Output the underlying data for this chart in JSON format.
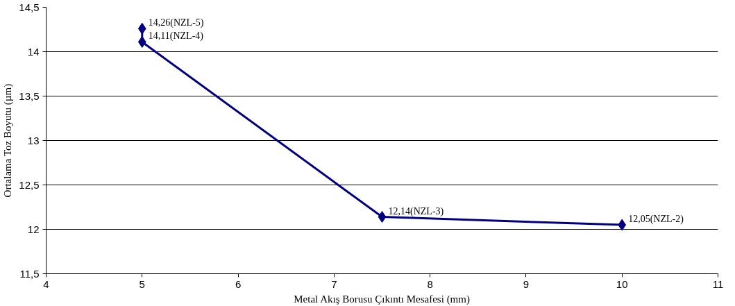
{
  "chart_data": {
    "type": "line",
    "xlabel": "Metal Akış Borusu Çıkıntı Mesafesi (mm)",
    "ylabel": "Ortalama Toz Boyutu (µm)",
    "x": [
      5,
      5,
      7.5,
      10
    ],
    "series": [
      {
        "color": "#000080",
        "values": [
          14.26,
          14.11,
          12.14,
          12.05
        ],
        "value_labels": [
          "14,26(NZL-5)",
          "14,11(NZL-4)",
          "12,14(NZL-3)",
          "12,05(NZL-2)"
        ]
      }
    ],
    "xlim": [
      4,
      11
    ],
    "xticks": [
      4,
      5,
      6,
      7,
      8,
      9,
      10,
      11
    ],
    "ylim": [
      11.5,
      14.5
    ],
    "yticks": [
      {
        "value": 11.5,
        "label": "11,5"
      },
      12,
      {
        "value": 12.5,
        "label": "12,5"
      },
      13,
      {
        "value": 13.5,
        "label": "13,5"
      },
      14,
      {
        "value": 14.5,
        "label": "14,5"
      }
    ],
    "grid": "y",
    "marker": "diamond",
    "line_style": "solid"
  }
}
